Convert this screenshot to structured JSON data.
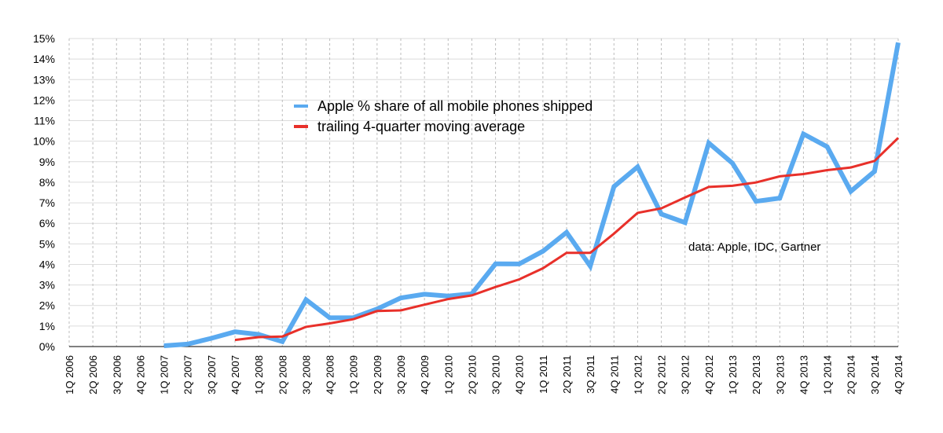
{
  "chart_data": {
    "type": "line",
    "title": "",
    "xlabel": "",
    "ylabel": "",
    "categories": [
      "1Q 2006",
      "2Q 2006",
      "3Q 2006",
      "4Q 2006",
      "1Q 2007",
      "2Q 2007",
      "3Q 2007",
      "4Q 2007",
      "1Q 2008",
      "2Q 2008",
      "3Q 2008",
      "4Q 2008",
      "1Q 2009",
      "2Q 2009",
      "3Q 2009",
      "4Q 2009",
      "1Q 2010",
      "2Q 2010",
      "3Q 2010",
      "4Q 2010",
      "1Q 2011",
      "2Q 2011",
      "3Q 2011",
      "4Q 2011",
      "1Q 2012",
      "2Q 2012",
      "3Q 2012",
      "4Q 2012",
      "1Q 2013",
      "2Q 2013",
      "3Q 2013",
      "4Q 2013",
      "1Q 2014",
      "2Q 2014",
      "3Q 2014",
      "4Q 2014"
    ],
    "y_ticks": [
      "0%",
      "1%",
      "2%",
      "3%",
      "4%",
      "5%",
      "6%",
      "7%",
      "8%",
      "9%",
      "10%",
      "11%",
      "12%",
      "13%",
      "14%",
      "15%"
    ],
    "ylim": [
      0,
      15
    ],
    "grid": true,
    "legend_position": "top-center",
    "series": [
      {
        "name": "Apple % share of all mobile phones shipped",
        "color": "#5aaaf0",
        "values": [
          null,
          null,
          null,
          null,
          0.04,
          0.12,
          0.4,
          0.72,
          0.59,
          0.24,
          2.28,
          1.4,
          1.41,
          1.83,
          2.37,
          2.55,
          2.46,
          2.57,
          4.03,
          4.02,
          4.64,
          5.56,
          3.92,
          7.79,
          8.75,
          6.45,
          6.04,
          9.91,
          8.93,
          7.07,
          7.23,
          10.35,
          9.73,
          7.56,
          8.53,
          14.8
        ]
      },
      {
        "name": "trailing 4-quarter moving average",
        "color": "#e8302a",
        "values": [
          null,
          null,
          null,
          null,
          null,
          null,
          null,
          0.32,
          0.46,
          0.49,
          0.96,
          1.13,
          1.33,
          1.73,
          1.76,
          2.04,
          2.31,
          2.49,
          2.9,
          3.27,
          3.81,
          4.56,
          4.56,
          5.5,
          6.51,
          6.73,
          7.26,
          7.77,
          7.83,
          7.99,
          8.29,
          8.4,
          8.59,
          8.72,
          9.04,
          10.16
        ]
      }
    ],
    "annotations": [
      "data: Apple, IDC, Gartner"
    ]
  }
}
